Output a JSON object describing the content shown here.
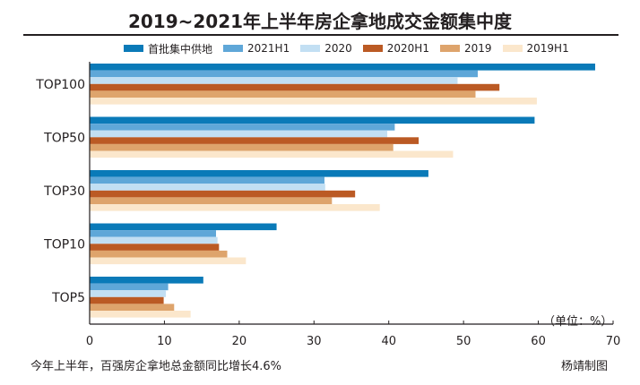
{
  "chart_data": {
    "type": "bar",
    "orientation": "horizontal",
    "title": "2019~2021年上半年房企拿地成交金额集中度",
    "categories": [
      "TOP100",
      "TOP50",
      "TOP30",
      "TOP10",
      "TOP5"
    ],
    "series": [
      {
        "name": "首批集中供地",
        "color": "#0a7ab8",
        "values": [
          67.6,
          59.5,
          45.3,
          25.0,
          15.2
        ]
      },
      {
        "name": "2021H1",
        "color": "#5fa7d8",
        "values": [
          51.9,
          40.8,
          31.4,
          16.9,
          10.5
        ]
      },
      {
        "name": "2020",
        "color": "#c2dff3",
        "values": [
          49.2,
          39.8,
          31.5,
          17.1,
          10.2
        ]
      },
      {
        "name": "2020H1",
        "color": "#bb5a24",
        "values": [
          54.8,
          44.0,
          35.5,
          17.3,
          9.9
        ]
      },
      {
        "name": "2019",
        "color": "#dea46c",
        "values": [
          51.6,
          40.6,
          32.4,
          18.4,
          11.3
        ]
      },
      {
        "name": "2019H1",
        "color": "#fbe7cc",
        "values": [
          59.8,
          48.6,
          38.8,
          20.9,
          13.5
        ]
      }
    ],
    "xticks": [
      0,
      10,
      20,
      30,
      40,
      50,
      60,
      70
    ],
    "xlim": [
      0,
      70
    ],
    "legend_position": "top",
    "grid": false
  },
  "unit_label": "（单位：%）",
  "footnote": "今年上半年，百强房企拿地总金额同比增长4.6%",
  "credit": "杨靖制图"
}
